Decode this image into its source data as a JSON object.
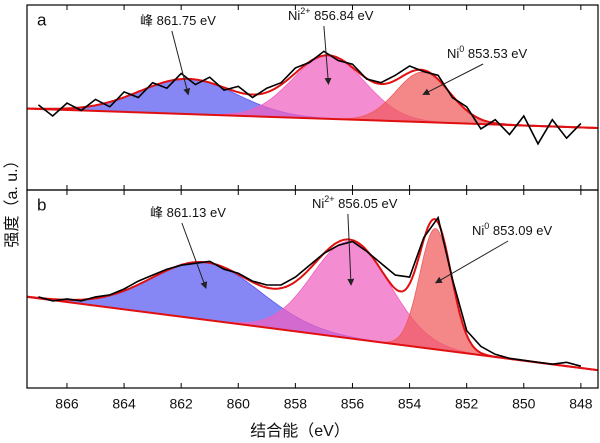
{
  "chart_data": [
    {
      "type": "line",
      "panel_label": "a",
      "y_label": "强度（a. u.）",
      "xlim": [
        867.4,
        847.4
      ],
      "ylim": [
        0,
        1
      ],
      "x": [
        867,
        866.5,
        866,
        865.5,
        865,
        864.5,
        864,
        863.5,
        863,
        862.5,
        862,
        861.5,
        861,
        860.5,
        860,
        859.5,
        859,
        858.5,
        858,
        857.5,
        857,
        856.5,
        856,
        855.5,
        855,
        854.5,
        854,
        853.5,
        853,
        852.5,
        852,
        851.5,
        851,
        850.5,
        850,
        849.5,
        849,
        848.5,
        848
      ],
      "series": [
        {
          "color": "#000000",
          "values": [
            0.46,
            0.4,
            0.47,
            0.43,
            0.49,
            0.45,
            0.53,
            0.5,
            0.58,
            0.55,
            0.63,
            0.57,
            0.61,
            0.54,
            0.56,
            0.5,
            0.55,
            0.58,
            0.66,
            0.69,
            0.75,
            0.7,
            0.68,
            0.6,
            0.58,
            0.62,
            0.67,
            0.64,
            0.62,
            0.5,
            0.45,
            0.33,
            0.38,
            0.3,
            0.4,
            0.25,
            0.38,
            0.28,
            0.36
          ]
        }
      ],
      "background": {
        "x": [
          867.4,
          847.4
        ],
        "values": [
          0.44,
          0.335
        ]
      },
      "fit_color": "#e01010",
      "components": [
        {
          "center": 861.75,
          "amplitude": 0.19,
          "fwhm": 4.0,
          "color": "#5858f0"
        },
        {
          "center": 856.84,
          "amplitude": 0.34,
          "fwhm": 3.0,
          "color": "#f060c0"
        },
        {
          "center": 853.53,
          "amplitude": 0.27,
          "fwhm": 2.2,
          "color": "#f05a5a"
        }
      ],
      "annotations": [
        {
          "text": "峰 861.75 eV"
        },
        {
          "text": "Ni",
          "sup": "2+",
          "rest": " 856.84 eV"
        },
        {
          "text": "Ni",
          "sup": "0",
          "rest": " 853.53 eV"
        }
      ]
    },
    {
      "type": "line",
      "panel_label": "b",
      "x_label": "结合能（eV）",
      "xlim": [
        867.4,
        847.4
      ],
      "ylim": [
        0,
        1
      ],
      "xticks": [
        866,
        864,
        862,
        860,
        858,
        856,
        854,
        852,
        850,
        848
      ],
      "x": [
        867,
        866.5,
        866,
        865.5,
        865,
        864.5,
        864,
        863.5,
        863,
        862.5,
        862,
        861.5,
        861,
        860.5,
        860,
        859.5,
        859,
        858.5,
        858,
        857.5,
        857,
        856.5,
        856,
        855.5,
        855,
        854.5,
        854,
        853.5,
        853,
        852.5,
        852,
        851.5,
        851,
        850.5,
        850,
        849.5,
        849,
        848.5,
        848
      ],
      "series": [
        {
          "color": "#000000",
          "values": [
            0.46,
            0.44,
            0.45,
            0.44,
            0.46,
            0.47,
            0.5,
            0.54,
            0.57,
            0.6,
            0.62,
            0.63,
            0.64,
            0.6,
            0.58,
            0.54,
            0.52,
            0.52,
            0.56,
            0.62,
            0.68,
            0.72,
            0.74,
            0.69,
            0.63,
            0.57,
            0.56,
            0.76,
            0.86,
            0.55,
            0.29,
            0.21,
            0.17,
            0.15,
            0.14,
            0.13,
            0.12,
            0.13,
            0.11
          ]
        }
      ],
      "background": {
        "x": [
          867.4,
          847.4
        ],
        "values": [
          0.46,
          0.09
        ]
      },
      "fit_color": "#e01010",
      "components": [
        {
          "center": 861.13,
          "amplitude": 0.29,
          "fwhm": 4.5,
          "color": "#5858f0"
        },
        {
          "center": 856.05,
          "amplitude": 0.49,
          "fwhm": 3.2,
          "color": "#f060c0"
        },
        {
          "center": 853.09,
          "amplitude": 0.61,
          "fwhm": 1.3,
          "color": "#f05a5a"
        }
      ],
      "annotations": [
        {
          "text": "峰 861.13 eV"
        },
        {
          "text": "Ni",
          "sup": "2+",
          "rest": " 856.05 eV"
        },
        {
          "text": "Ni",
          "sup": "0",
          "rest": " 853.09 eV"
        }
      ]
    }
  ]
}
